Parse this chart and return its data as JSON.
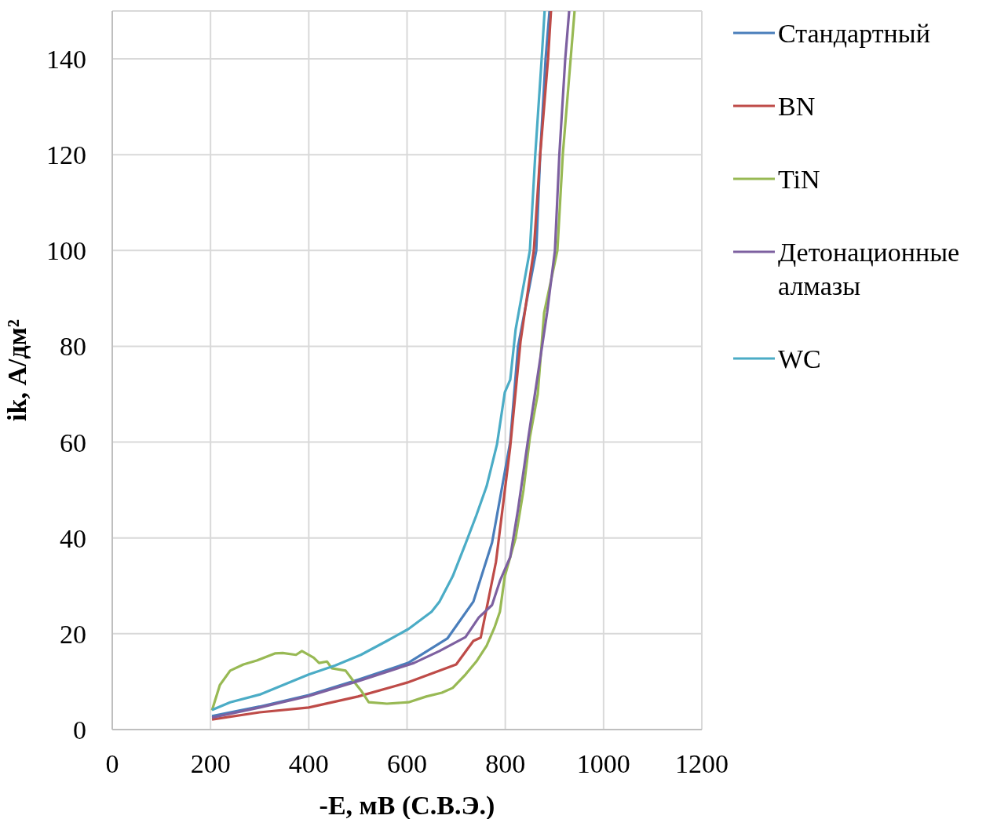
{
  "chart_data": {
    "type": "line",
    "xlabel": "-E, мВ (С.В.Э.)",
    "ylabel": "ik, А/дм²",
    "xlim": [
      0,
      1200
    ],
    "xticks": [
      0,
      200,
      400,
      600,
      800,
      1000,
      1200
    ],
    "ylim": [
      0,
      150
    ],
    "yticks": [
      0,
      20,
      40,
      60,
      80,
      100,
      120,
      140
    ],
    "grid": true,
    "legend": "right",
    "line_style": "solid",
    "marker": "none",
    "series": [
      {
        "name": "Стандартный",
        "color": "#4a7ebb",
        "x": [
          203,
          300,
          400,
          500,
          602,
          682,
          735,
          773,
          810,
          826,
          863,
          871,
          882,
          890
        ],
        "values": [
          2.8,
          4.8,
          7.2,
          10.4,
          13.9,
          19,
          26.7,
          39,
          60,
          80,
          100,
          120,
          140,
          150
        ]
      },
      {
        "name": "BN",
        "color": "#be4b48",
        "x": [
          203,
          300,
          400,
          500,
          600,
          700,
          735,
          750,
          781,
          810,
          831,
          858,
          871,
          887,
          893
        ],
        "values": [
          2.1,
          3.6,
          4.6,
          6.9,
          9.8,
          13.6,
          18.5,
          19.2,
          35,
          59,
          81,
          100,
          120,
          140,
          150
        ]
      },
      {
        "name": "TiN",
        "color": "#98b954",
        "x": [
          203,
          219,
          240,
          267,
          294,
          331,
          347,
          374,
          386,
          410,
          421,
          437,
          447,
          475,
          491,
          506,
          522,
          559,
          603,
          639,
          671,
          693,
          719,
          741,
          762,
          778,
          789,
          799,
          821,
          837,
          850,
          866,
          879,
          906,
          917,
          933,
          941
        ],
        "values": [
          4,
          9.3,
          12.3,
          13.6,
          14.4,
          15.9,
          16,
          15.6,
          16.4,
          15,
          13.9,
          14.2,
          12.8,
          12.3,
          10.1,
          8.2,
          5.7,
          5.4,
          5.7,
          6.9,
          7.7,
          8.7,
          11.5,
          14.2,
          17.5,
          21.3,
          24.6,
          32,
          40,
          50,
          61,
          70,
          87,
          100,
          120,
          140,
          150
        ]
      },
      {
        "name": "Детонационные алмазы",
        "color": "#7d60a0",
        "x": [
          203,
          300,
          400,
          506,
          614,
          666,
          719,
          746,
          773,
          789,
          810,
          826,
          847,
          869,
          885,
          901,
          910,
          922,
          930
        ],
        "values": [
          2.5,
          4.6,
          7,
          10.3,
          13.9,
          16.4,
          19.3,
          23.4,
          26,
          31,
          36,
          46,
          61,
          76,
          87,
          100,
          120,
          140,
          150
        ]
      },
      {
        "name": "WC",
        "color": "#4bacc6",
        "x": [
          203,
          240,
          300,
          400,
          454,
          506,
          559,
          603,
          650,
          666,
          693,
          719,
          741,
          762,
          783,
          799,
          810,
          821,
          850,
          861,
          874,
          880
        ],
        "values": [
          4.1,
          5.7,
          7.3,
          11.5,
          13.4,
          15.6,
          18.5,
          21,
          24.6,
          26.7,
          32,
          38.8,
          44.7,
          50.8,
          59.5,
          70.4,
          73,
          83.5,
          100,
          120,
          140,
          150
        ]
      }
    ]
  }
}
